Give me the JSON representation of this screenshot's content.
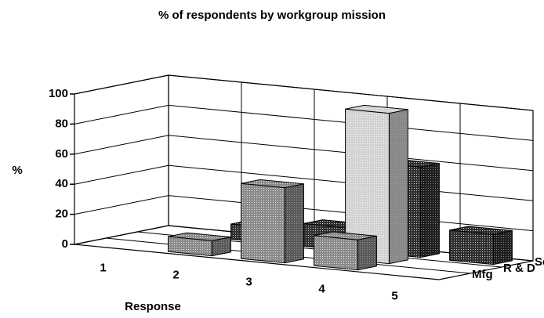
{
  "chart_data": {
    "type": "bar3d",
    "title": "% of respondents by workgroup mission",
    "x_label": "Response",
    "y_label": "%",
    "categories": [
      "1",
      "2",
      "3",
      "4",
      "5"
    ],
    "series": [
      {
        "name": "Mfg",
        "color": "#8a8a8a",
        "values": [
          0,
          10,
          50,
          20,
          0
        ]
      },
      {
        "name": "R & D",
        "color": "#d2d2d2",
        "values": [
          0,
          0,
          0,
          100,
          0
        ]
      },
      {
        "name": "Service",
        "color": "#2e2e2e",
        "values": [
          0,
          10,
          15,
          60,
          20
        ]
      }
    ],
    "ylim": [
      0,
      100
    ],
    "yticks": [
      0,
      20,
      40,
      60,
      80,
      100
    ],
    "grid": true
  }
}
